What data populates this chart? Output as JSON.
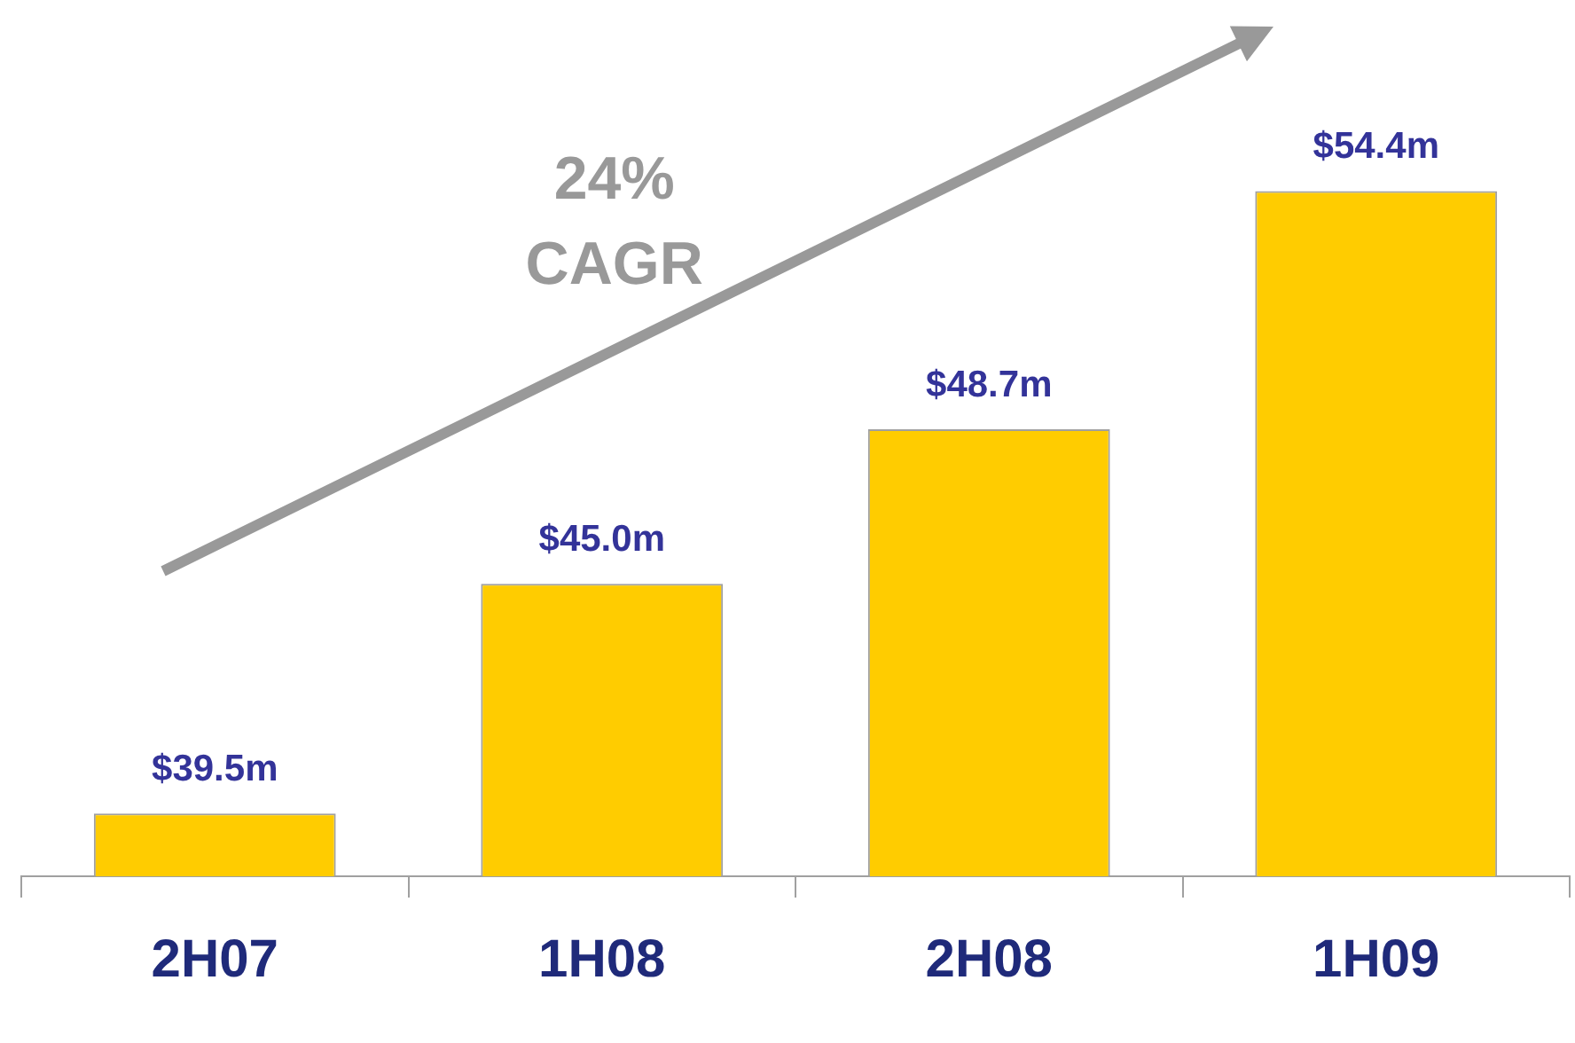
{
  "chart_data": {
    "type": "bar",
    "categories": [
      "2H07",
      "1H08",
      "2H08",
      "1H09"
    ],
    "values": [
      39.5,
      45.0,
      48.7,
      54.4
    ],
    "value_labels": [
      "$39.5m",
      "$45.0m",
      "$48.7m",
      "$54.4m"
    ],
    "color": "#ffcc00",
    "tick_labels": "x",
    "grid": false,
    "legend": false,
    "annotations": [
      "24%\nCAGR"
    ]
  }
}
